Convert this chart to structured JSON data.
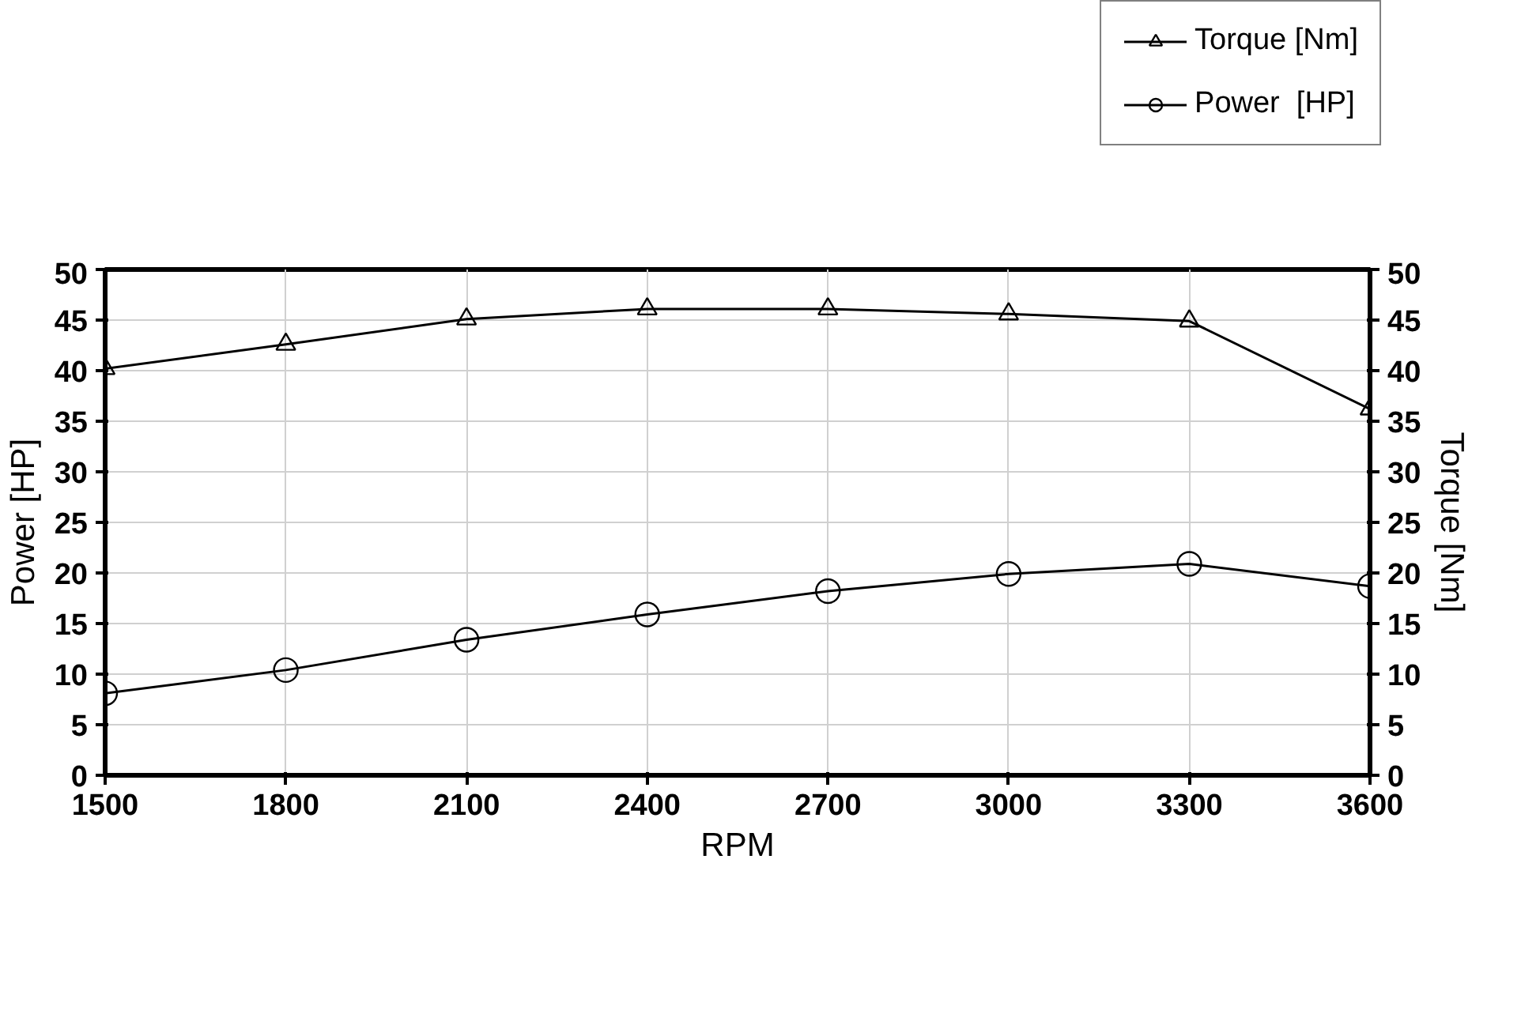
{
  "chart_data": {
    "type": "line",
    "xlabel": "RPM",
    "ylabel": "Power [HP]",
    "y2label": "Torque [Nm]",
    "x": [
      1500,
      1800,
      2100,
      2400,
      2700,
      3000,
      3300,
      3600
    ],
    "series": [
      {
        "name": "Torque [Nm]",
        "color": "#000000",
        "marker": "triangle",
        "values": [
          40.2,
          42.6,
          45.1,
          46.1,
          46.1,
          45.6,
          44.9,
          36.2
        ]
      },
      {
        "name": "Power  [HP]",
        "color": "#000000",
        "marker": "circle",
        "values": [
          8.1,
          10.4,
          13.4,
          15.9,
          18.2,
          19.9,
          20.9,
          18.7
        ]
      }
    ],
    "xlim": [
      1500,
      3600
    ],
    "xticks": [
      1500,
      1800,
      2100,
      2400,
      2700,
      3000,
      3300,
      3600
    ],
    "ylim": [
      0,
      50
    ],
    "yticks": [
      0,
      5,
      10,
      15,
      20,
      25,
      30,
      35,
      40,
      45,
      50
    ],
    "y2lim": [
      0,
      50
    ],
    "y2ticks": [
      0,
      5,
      10,
      15,
      20,
      25,
      30,
      35,
      40,
      45,
      50
    ],
    "grid": true,
    "legend": "top right",
    "line_style": "solid"
  }
}
